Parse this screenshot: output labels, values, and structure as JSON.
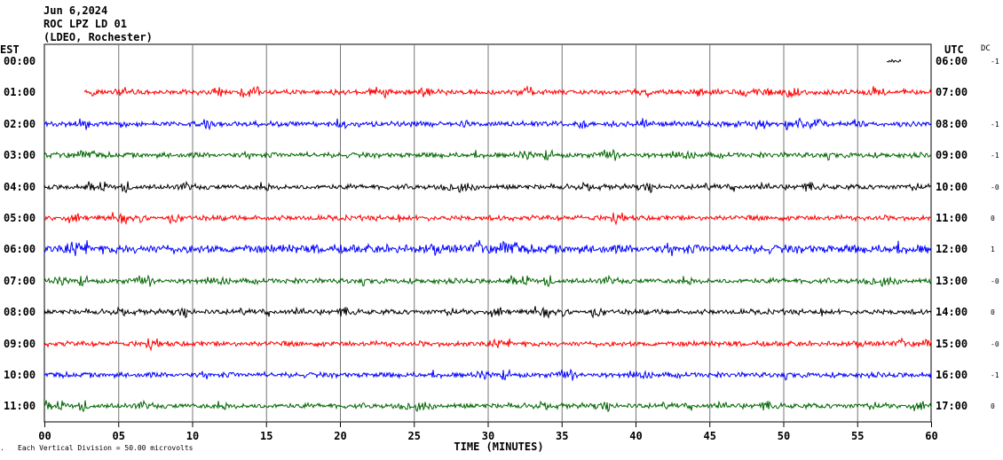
{
  "header": {
    "date": "Jun 6,2024",
    "station": "ROC LPZ LD 01",
    "network": "(LDEO, Rochester)"
  },
  "footer": {
    "scale_note": "Each Vertical Division =   50.00 microvolts",
    "corner_mark": "."
  },
  "chart_data": {
    "type": "line",
    "title": "ROC LPZ LD 01",
    "xlabel": "TIME (MINUTES)",
    "left_axis_title": "EST",
    "right_axis_title": "UTC",
    "dc_title": "DC",
    "xlim": [
      0,
      60
    ],
    "x_ticks": [
      "00",
      "05",
      "10",
      "15",
      "20",
      "25",
      "30",
      "35",
      "40",
      "45",
      "50",
      "55",
      "60"
    ],
    "grid": true,
    "row_colors": [
      "#000000",
      "#ff0000",
      "#0000ff",
      "#006600"
    ],
    "rows": [
      {
        "est": "00:00",
        "utc": "06:00",
        "dc": "-1",
        "start_min": 57.0,
        "end_min": 58.0,
        "amp": 2
      },
      {
        "est": "01:00",
        "utc": "07:00",
        "dc": "",
        "start_min": 2.7,
        "end_min": 60,
        "amp": 3
      },
      {
        "est": "02:00",
        "utc": "08:00",
        "dc": "-1",
        "start_min": 0,
        "end_min": 60,
        "amp": 3
      },
      {
        "est": "03:00",
        "utc": "09:00",
        "dc": "-1",
        "start_min": 0,
        "end_min": 60,
        "amp": 3
      },
      {
        "est": "04:00",
        "utc": "10:00",
        "dc": "-0",
        "start_min": 0,
        "end_min": 60,
        "amp": 3
      },
      {
        "est": "05:00",
        "utc": "11:00",
        "dc": "0",
        "start_min": 0,
        "end_min": 60,
        "amp": 3
      },
      {
        "est": "06:00",
        "utc": "12:00",
        "dc": "1",
        "start_min": 0,
        "end_min": 60,
        "amp": 5
      },
      {
        "est": "07:00",
        "utc": "13:00",
        "dc": "-0",
        "start_min": 0,
        "end_min": 60,
        "amp": 3
      },
      {
        "est": "08:00",
        "utc": "14:00",
        "dc": "0",
        "start_min": 0,
        "end_min": 60,
        "amp": 3
      },
      {
        "est": "09:00",
        "utc": "15:00",
        "dc": "-0",
        "start_min": 0,
        "end_min": 60,
        "amp": 3
      },
      {
        "est": "10:00",
        "utc": "16:00",
        "dc": "-1",
        "start_min": 0,
        "end_min": 60,
        "amp": 3
      },
      {
        "est": "11:00",
        "utc": "17:00",
        "dc": "0",
        "start_min": 0,
        "end_min": 60,
        "amp": 3
      }
    ]
  }
}
